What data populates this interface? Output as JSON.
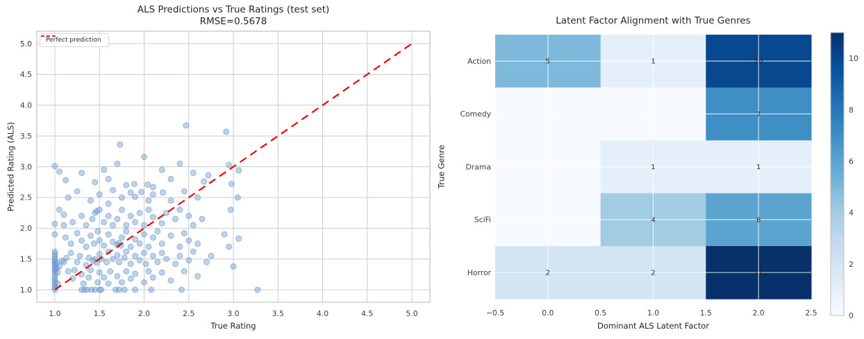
{
  "figure": {
    "background": "#ffffff",
    "grid_color": "#cccccc",
    "spine_color": "#c0c0c0",
    "tick_color": "#3d3d3d"
  },
  "chart_data": [
    {
      "type": "scatter",
      "title": "ALS Predictions vs True Ratings (test set)",
      "subtitle": "RMSE=0.5678",
      "xlabel": "True Rating",
      "ylabel": "Predicted Rating (ALS)",
      "xlim": [
        0.8,
        5.2
      ],
      "ylim": [
        0.8,
        5.2
      ],
      "xticks": [
        1.0,
        1.5,
        2.0,
        2.5,
        3.0,
        3.5,
        4.0,
        4.5,
        5.0
      ],
      "yticks": [
        1.0,
        1.5,
        2.0,
        2.5,
        3.0,
        3.5,
        4.0,
        4.5,
        5.0
      ],
      "x_tick_labels": [
        "1.0",
        "1.5",
        "2.0",
        "2.5",
        "3.0",
        "3.5",
        "4.0",
        "4.5",
        "5.0"
      ],
      "y_tick_labels": [
        "1.0",
        "1.5",
        "2.0",
        "2.5",
        "3.0",
        "3.5",
        "4.0",
        "4.5",
        "5.0"
      ],
      "grid": true,
      "point_color": "#5b8ec4",
      "point_fill": "#6f9ed1",
      "point_fill_opacity": 0.45,
      "line": {
        "label": "Perfect prediction",
        "color": "#f40000",
        "dash": true,
        "x": [
          1,
          5
        ],
        "y": [
          1,
          5
        ]
      },
      "points": [
        [
          1.0,
          1.0
        ],
        [
          1.0,
          1.04
        ],
        [
          1.0,
          1.08
        ],
        [
          1.0,
          1.12
        ],
        [
          1.0,
          1.16
        ],
        [
          1.0,
          1.2
        ],
        [
          1.0,
          1.25
        ],
        [
          1.0,
          1.3
        ],
        [
          1.0,
          1.33
        ],
        [
          1.0,
          1.36
        ],
        [
          1.0,
          1.4
        ],
        [
          1.0,
          1.43
        ],
        [
          1.0,
          1.46
        ],
        [
          1.0,
          1.5
        ],
        [
          1.0,
          1.54
        ],
        [
          1.0,
          1.58
        ],
        [
          1.0,
          1.62
        ],
        [
          1.0,
          1.9
        ],
        [
          1.0,
          2.07
        ],
        [
          1.0,
          3.01
        ],
        [
          1.02,
          1.35
        ],
        [
          1.02,
          1.44
        ],
        [
          1.03,
          1.1
        ],
        [
          1.03,
          1.28
        ],
        [
          1.05,
          1.38
        ],
        [
          1.05,
          2.3
        ],
        [
          1.05,
          2.92
        ],
        [
          1.08,
          1.47
        ],
        [
          1.1,
          2.22
        ],
        [
          1.12,
          2.78
        ],
        [
          1.3,
          1.0
        ],
        [
          1.33,
          1.0
        ],
        [
          1.36,
          1.0
        ],
        [
          1.41,
          1.0
        ],
        [
          1.45,
          1.0
        ],
        [
          1.5,
          1.0
        ],
        [
          1.52,
          1.0
        ],
        [
          1.68,
          1.0
        ],
        [
          1.72,
          1.0
        ],
        [
          1.78,
          1.0
        ],
        [
          1.9,
          1.0
        ],
        [
          2.08,
          1.0
        ],
        [
          2.42,
          1.0
        ],
        [
          3.27,
          1.0
        ],
        [
          1.15,
          1.3
        ],
        [
          1.2,
          1.18
        ],
        [
          1.22,
          1.32
        ],
        [
          1.3,
          1.25
        ],
        [
          1.32,
          1.1
        ],
        [
          1.38,
          1.2
        ],
        [
          1.4,
          1.32
        ],
        [
          1.48,
          1.12
        ],
        [
          1.5,
          1.28
        ],
        [
          1.55,
          1.2
        ],
        [
          1.6,
          1.1
        ],
        [
          1.62,
          1.3
        ],
        [
          1.7,
          1.22
        ],
        [
          1.75,
          1.12
        ],
        [
          1.8,
          1.3
        ],
        [
          1.85,
          1.18
        ],
        [
          1.9,
          1.26
        ],
        [
          2.0,
          1.12
        ],
        [
          2.05,
          1.3
        ],
        [
          2.1,
          1.2
        ],
        [
          2.2,
          1.28
        ],
        [
          2.3,
          1.15
        ],
        [
          2.45,
          1.3
        ],
        [
          2.6,
          1.22
        ],
        [
          1.1,
          1.45
        ],
        [
          1.13,
          1.52
        ],
        [
          1.18,
          1.6
        ],
        [
          1.25,
          1.45
        ],
        [
          1.28,
          1.55
        ],
        [
          1.35,
          1.4
        ],
        [
          1.38,
          1.52
        ],
        [
          1.43,
          1.47
        ],
        [
          1.45,
          1.5
        ],
        [
          1.47,
          1.44
        ],
        [
          1.5,
          1.58
        ],
        [
          1.52,
          1.5
        ],
        [
          1.58,
          1.45
        ],
        [
          1.6,
          1.62
        ],
        [
          1.65,
          1.5
        ],
        [
          1.7,
          1.56
        ],
        [
          1.72,
          1.45
        ],
        [
          1.78,
          1.52
        ],
        [
          1.8,
          1.62
        ],
        [
          1.85,
          1.42
        ],
        [
          1.9,
          1.55
        ],
        [
          1.95,
          1.48
        ],
        [
          2.0,
          1.6
        ],
        [
          2.02,
          1.42
        ],
        [
          2.1,
          1.55
        ],
        [
          2.15,
          1.45
        ],
        [
          2.2,
          1.6
        ],
        [
          2.25,
          1.5
        ],
        [
          2.35,
          1.42
        ],
        [
          2.4,
          1.55
        ],
        [
          2.5,
          1.48
        ],
        [
          2.55,
          1.62
        ],
        [
          2.7,
          1.45
        ],
        [
          2.75,
          1.55
        ],
        [
          3.0,
          1.38
        ],
        [
          3.06,
          1.83
        ],
        [
          1.12,
          1.85
        ],
        [
          1.18,
          1.75
        ],
        [
          1.25,
          1.92
        ],
        [
          1.3,
          1.8
        ],
        [
          1.35,
          1.7
        ],
        [
          1.4,
          1.88
        ],
        [
          1.44,
          1.75
        ],
        [
          1.48,
          1.95
        ],
        [
          1.5,
          1.8
        ],
        [
          1.55,
          1.72
        ],
        [
          1.6,
          1.9
        ],
        [
          1.65,
          1.78
        ],
        [
          1.7,
          1.73
        ],
        [
          1.72,
          1.76
        ],
        [
          1.74,
          1.72
        ],
        [
          1.75,
          1.85
        ],
        [
          1.8,
          1.95
        ],
        [
          1.85,
          1.7
        ],
        [
          1.9,
          1.82
        ],
        [
          1.95,
          1.75
        ],
        [
          2.0,
          1.9
        ],
        [
          2.05,
          1.7
        ],
        [
          2.1,
          1.85
        ],
        [
          2.15,
          1.95
        ],
        [
          2.2,
          1.75
        ],
        [
          2.3,
          1.88
        ],
        [
          2.4,
          1.7
        ],
        [
          2.45,
          1.92
        ],
        [
          2.5,
          1.8
        ],
        [
          2.6,
          1.75
        ],
        [
          2.9,
          1.9
        ],
        [
          2.95,
          1.7
        ],
        [
          1.1,
          2.05
        ],
        [
          1.2,
          2.1
        ],
        [
          1.3,
          2.2
        ],
        [
          1.35,
          2.05
        ],
        [
          1.42,
          2.15
        ],
        [
          1.45,
          2.25
        ],
        [
          1.47,
          2.28
        ],
        [
          1.5,
          2.3
        ],
        [
          1.55,
          2.1
        ],
        [
          1.6,
          2.2
        ],
        [
          1.65,
          2.05
        ],
        [
          1.7,
          2.15
        ],
        [
          1.75,
          2.3
        ],
        [
          1.8,
          2.05
        ],
        [
          1.85,
          2.2
        ],
        [
          1.9,
          2.1
        ],
        [
          1.95,
          2.25
        ],
        [
          2.0,
          2.05
        ],
        [
          2.05,
          2.3
        ],
        [
          2.1,
          2.18
        ],
        [
          2.2,
          2.08
        ],
        [
          2.25,
          2.25
        ],
        [
          2.35,
          2.15
        ],
        [
          2.4,
          2.3
        ],
        [
          2.5,
          2.2
        ],
        [
          2.55,
          2.05
        ],
        [
          2.65,
          2.15
        ],
        [
          2.97,
          2.3
        ],
        [
          1.15,
          2.5
        ],
        [
          1.25,
          2.6
        ],
        [
          1.4,
          2.45
        ],
        [
          1.5,
          2.55
        ],
        [
          1.6,
          2.4
        ],
        [
          1.65,
          2.62
        ],
        [
          1.75,
          2.5
        ],
        [
          1.85,
          2.58
        ],
        [
          1.9,
          2.51
        ],
        [
          1.97,
          2.59
        ],
        [
          2.05,
          2.45
        ],
        [
          2.1,
          2.55
        ],
        [
          2.21,
          2.58
        ],
        [
          2.3,
          2.45
        ],
        [
          2.45,
          2.6
        ],
        [
          2.6,
          2.5
        ],
        [
          3.05,
          2.5
        ],
        [
          1.3,
          2.9
        ],
        [
          1.45,
          2.75
        ],
        [
          1.55,
          2.95
        ],
        [
          1.6,
          2.8
        ],
        [
          1.7,
          3.05
        ],
        [
          1.8,
          2.7
        ],
        [
          1.89,
          2.72
        ],
        [
          2.04,
          2.71
        ],
        [
          2.1,
          2.67
        ],
        [
          2.2,
          2.95
        ],
        [
          2.3,
          2.8
        ],
        [
          2.4,
          3.05
        ],
        [
          2.55,
          2.9
        ],
        [
          2.67,
          2.76
        ],
        [
          2.72,
          2.86
        ],
        [
          2.95,
          3.03
        ],
        [
          2.98,
          2.72
        ],
        [
          1.73,
          3.36
        ],
        [
          2.0,
          3.16
        ],
        [
          2.47,
          3.67
        ],
        [
          2.92,
          3.57
        ],
        [
          3.06,
          2.94
        ]
      ]
    },
    {
      "type": "heatmap",
      "title": "Latent Factor Alignment with True Genres",
      "xlabel": "Dominant ALS Latent Factor",
      "ylabel": "True Genre",
      "rows": [
        "Action",
        "Comedy",
        "Drama",
        "SciFi",
        "Horror"
      ],
      "columns": [
        0,
        1,
        2
      ],
      "matrix": [
        [
          5,
          1,
          10
        ],
        [
          0,
          0,
          7
        ],
        [
          0,
          1,
          1
        ],
        [
          0,
          4,
          6
        ],
        [
          2,
          2,
          11
        ]
      ],
      "x_tick_labels": [
        "−0.5",
        "0.0",
        "0.5",
        "1.0",
        "1.5",
        "2.0",
        "2.5"
      ],
      "vmin": 0,
      "vmax": 11,
      "colorbar_ticks": [
        0,
        2,
        4,
        6,
        8,
        10
      ],
      "colormap": "Blues",
      "colormap_stops": [
        {
          "t": 0.0,
          "c": "#f7fbff"
        },
        {
          "t": 0.125,
          "c": "#deebf7"
        },
        {
          "t": 0.25,
          "c": "#c6dbef"
        },
        {
          "t": 0.375,
          "c": "#9ecae1"
        },
        {
          "t": 0.5,
          "c": "#6baed6"
        },
        {
          "t": 0.625,
          "c": "#4292c6"
        },
        {
          "t": 0.75,
          "c": "#2171b5"
        },
        {
          "t": 0.875,
          "c": "#08519c"
        },
        {
          "t": 1.0,
          "c": "#08306b"
        }
      ],
      "annotation_color": "#262626"
    }
  ]
}
